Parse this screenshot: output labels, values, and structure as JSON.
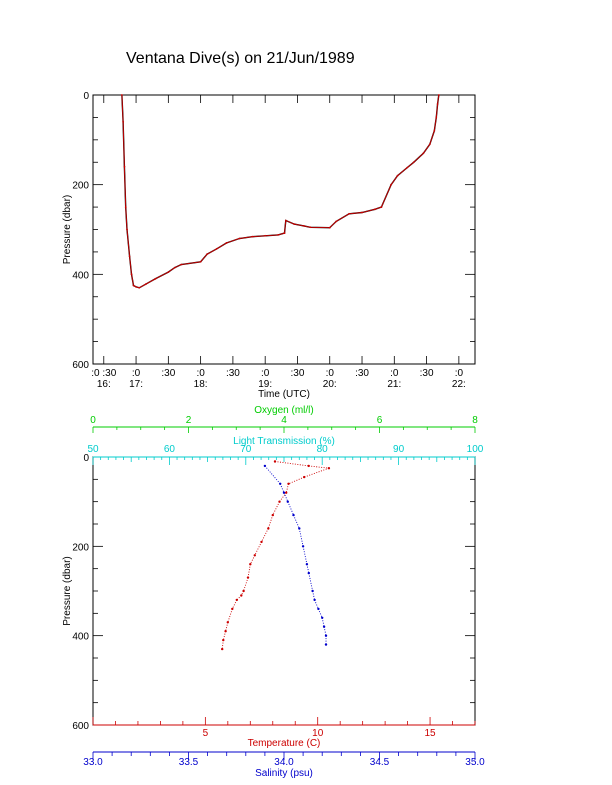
{
  "title": "Ventana Dive(s) on 21/Jun/1989",
  "chart_data": [
    {
      "type": "line",
      "xlabel": "Time (UTC)",
      "ylabel": "Pressure (dbar)",
      "x_range_hours": [
        16.333,
        22.25
      ],
      "ylim": [
        600,
        0
      ],
      "y_ticks": [
        "0",
        "200",
        "400",
        "600"
      ],
      "x_ticks": [
        {
          "t": 16.5,
          "line1": ":0 :30",
          "line2": "16:"
        },
        {
          "t": 17.0,
          "line1": ":0",
          "line2": "17:"
        },
        {
          "t": 17.5,
          "line1": ":30",
          "line2": ""
        },
        {
          "t": 18.0,
          "line1": ":0",
          "line2": "18:"
        },
        {
          "t": 18.5,
          "line1": ":30",
          "line2": ""
        },
        {
          "t": 19.0,
          "line1": ":0",
          "line2": "19:"
        },
        {
          "t": 19.5,
          "line1": ":30",
          "line2": ""
        },
        {
          "t": 20.0,
          "line1": ":0",
          "line2": "20:"
        },
        {
          "t": 20.5,
          "line1": ":30",
          "line2": ""
        },
        {
          "t": 21.0,
          "line1": ":0",
          "line2": "21:"
        },
        {
          "t": 21.5,
          "line1": ":30",
          "line2": ""
        },
        {
          "t": 22.0,
          "line1": ":0",
          "line2": "22:"
        }
      ],
      "series": [
        {
          "color": "#cc0000",
          "points": [
            [
              16.78,
              0
            ],
            [
              16.8,
              60
            ],
            [
              16.82,
              160
            ],
            [
              16.84,
              250
            ],
            [
              16.86,
              300
            ],
            [
              16.9,
              360
            ],
            [
              16.93,
              400
            ],
            [
              16.96,
              425
            ],
            [
              17.0,
              428
            ],
            [
              17.05,
              430
            ],
            [
              17.15,
              422
            ],
            [
              17.3,
              410
            ],
            [
              17.5,
              395
            ],
            [
              17.6,
              385
            ],
            [
              17.7,
              378
            ],
            [
              18.0,
              372
            ],
            [
              18.1,
              355
            ],
            [
              18.25,
              343
            ],
            [
              18.4,
              330
            ],
            [
              18.6,
              320
            ],
            [
              18.8,
              316
            ],
            [
              19.0,
              314
            ],
            [
              19.2,
              312
            ],
            [
              19.3,
              308
            ],
            [
              19.32,
              280
            ],
            [
              19.45,
              288
            ],
            [
              19.6,
              292
            ],
            [
              19.7,
              295
            ],
            [
              20.0,
              296
            ],
            [
              20.1,
              282
            ],
            [
              20.3,
              265
            ],
            [
              20.5,
              262
            ],
            [
              20.7,
              255
            ],
            [
              20.8,
              250
            ],
            [
              20.95,
              200
            ],
            [
              21.05,
              180
            ],
            [
              21.2,
              162
            ],
            [
              21.3,
              150
            ],
            [
              21.45,
              130
            ],
            [
              21.55,
              110
            ],
            [
              21.62,
              80
            ],
            [
              21.65,
              50
            ],
            [
              21.67,
              20
            ],
            [
              21.69,
              0
            ]
          ]
        }
      ]
    },
    {
      "type": "scatter",
      "ylabel": "Pressure (dbar)",
      "ylim": [
        600,
        0
      ],
      "y_ticks": [
        "0",
        "200",
        "400",
        "600"
      ],
      "axes": {
        "oxygen": {
          "label": "Oxygen (ml/l)",
          "range": [
            0,
            8
          ],
          "ticks": [
            "0",
            "2",
            "4",
            "6",
            "8"
          ],
          "color": "#00cc00"
        },
        "light": {
          "label": "Light Transmission (%)",
          "range": [
            50,
            100
          ],
          "ticks": [
            "50",
            "60",
            "70",
            "80",
            "90",
            "100"
          ],
          "color": "#00cccc"
        },
        "temperature": {
          "label": "Temperature (C)",
          "range": [
            0,
            17
          ],
          "ticks": [
            "5",
            "10",
            "15"
          ],
          "color": "#cc0000"
        },
        "salinity": {
          "label": "Salinity (psu)",
          "range": [
            33.0,
            35.0
          ],
          "ticks": [
            "33.0",
            "33.5",
            "34.0",
            "34.5",
            "35.0"
          ],
          "color": "#0000cc"
        }
      },
      "series": [
        {
          "axis": "temperature",
          "color": "#cc0000",
          "points": [
            [
              8.1,
              10
            ],
            [
              9.6,
              20
            ],
            [
              10.5,
              25
            ],
            [
              9.4,
              45
            ],
            [
              8.7,
              60
            ],
            [
              8.6,
              80
            ],
            [
              8.3,
              100
            ],
            [
              8.0,
              130
            ],
            [
              7.8,
              160
            ],
            [
              7.5,
              190
            ],
            [
              7.2,
              220
            ],
            [
              7.0,
              240
            ],
            [
              6.9,
              270
            ],
            [
              6.7,
              300
            ],
            [
              6.6,
              310
            ],
            [
              6.4,
              320
            ],
            [
              6.2,
              340
            ],
            [
              6.0,
              370
            ],
            [
              5.9,
              390
            ],
            [
              5.8,
              410
            ],
            [
              5.75,
              430
            ]
          ]
        },
        {
          "axis": "salinity",
          "color": "#0000cc",
          "points": [
            [
              33.9,
              20
            ],
            [
              33.98,
              60
            ],
            [
              34.0,
              80
            ],
            [
              34.02,
              100
            ],
            [
              34.05,
              130
            ],
            [
              34.08,
              160
            ],
            [
              34.1,
              200
            ],
            [
              34.12,
              240
            ],
            [
              34.13,
              260
            ],
            [
              34.15,
              300
            ],
            [
              34.16,
              320
            ],
            [
              34.18,
              340
            ],
            [
              34.2,
              360
            ],
            [
              34.21,
              380
            ],
            [
              34.22,
              400
            ],
            [
              34.22,
              420
            ]
          ]
        }
      ]
    }
  ]
}
